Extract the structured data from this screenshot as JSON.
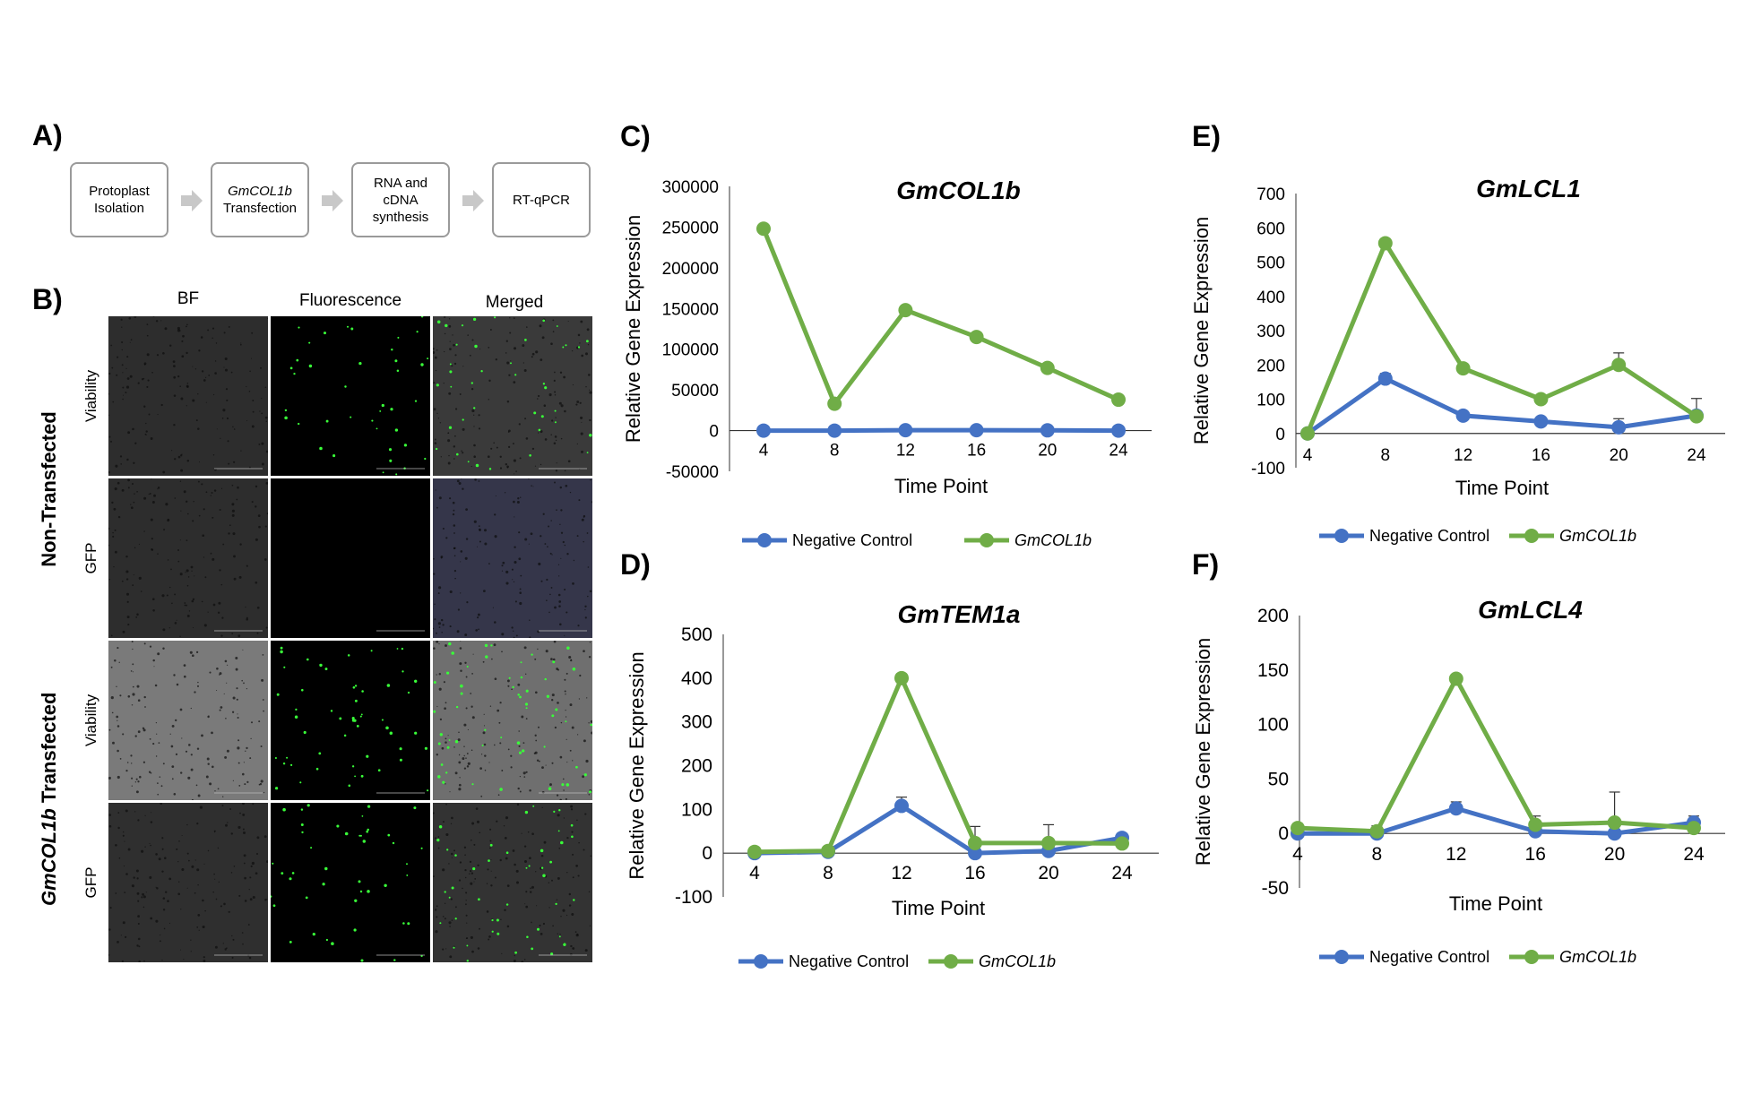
{
  "panel_labels": {
    "a": "A)",
    "b": "B)",
    "c": "C)",
    "d": "D)",
    "e": "E)",
    "f": "F)"
  },
  "workflow": {
    "steps": [
      {
        "line1": "Protoplast",
        "line2": "Isolation",
        "line3": "",
        "italic1": false
      },
      {
        "line1": "GmCOL1b",
        "line2": "Transfection",
        "line3": "",
        "italic1": true
      },
      {
        "line1": "RNA and",
        "line2": "cDNA",
        "line3": "synthesis",
        "italic1": false
      },
      {
        "line1": "RT-qPCR",
        "line2": "",
        "line3": "",
        "italic1": false
      }
    ]
  },
  "microscopy": {
    "columns": [
      "BF",
      "Fluorescence",
      "Merged"
    ],
    "groups": [
      {
        "label": "Non-Transfected",
        "italic_prefix": "",
        "rows": [
          "Viability",
          "GFP"
        ]
      },
      {
        "label": " Transfected",
        "italic_prefix": "GmCOL1b",
        "rows": [
          "Viability",
          "GFP"
        ]
      }
    ],
    "colors": {
      "bf_dark": "#2d2d2d",
      "bf_light": "#7a7a7a",
      "fluor_bg": "#000000",
      "gfp": "#39ff39",
      "merged_blue": "#35364a"
    }
  },
  "chart_data": [
    {
      "id": "C",
      "type": "line",
      "title": "GmCOL1b",
      "xlabel": "Time Point",
      "ylabel": "Relative Gene Expression",
      "x": [
        4,
        8,
        12,
        16,
        20,
        24
      ],
      "ylim": [
        -50000,
        300000
      ],
      "yticks": [
        -50000,
        0,
        50000,
        100000,
        150000,
        200000,
        250000,
        300000
      ],
      "grid": false,
      "legend": "bottom",
      "series": [
        {
          "name": "Negative Control",
          "color": "#4472c4",
          "values": [
            0,
            0,
            500,
            500,
            300,
            0
          ],
          "errors": [
            0,
            0,
            0,
            0,
            0,
            0
          ]
        },
        {
          "name": "GmCOL1b",
          "color": "#70ad47",
          "values": [
            248000,
            33000,
            148000,
            115000,
            77000,
            38000
          ],
          "errors": [
            0,
            0,
            0,
            0,
            0,
            0
          ]
        }
      ]
    },
    {
      "id": "E",
      "type": "line",
      "title": "GmLCL1",
      "xlabel": "Time Point",
      "ylabel": "Relative Gene Expression",
      "x": [
        4,
        8,
        12,
        16,
        20,
        24
      ],
      "ylim": [
        -100,
        700
      ],
      "yticks": [
        -100,
        0,
        100,
        200,
        300,
        400,
        500,
        600,
        700
      ],
      "grid": false,
      "legend": "bottom",
      "series": [
        {
          "name": "Negative Control",
          "color": "#4472c4",
          "values": [
            0,
            160,
            52,
            35,
            18,
            52
          ],
          "errors": [
            0,
            15,
            0,
            0,
            25,
            50
          ]
        },
        {
          "name": "GmCOL1b",
          "color": "#70ad47",
          "values": [
            0,
            555,
            190,
            100,
            200,
            50
          ],
          "errors": [
            0,
            0,
            0,
            0,
            35,
            0
          ]
        }
      ]
    },
    {
      "id": "D",
      "type": "line",
      "title": "GmTEM1a",
      "xlabel": "Time Point",
      "ylabel": "Relative Gene Expression",
      "x": [
        4,
        8,
        12,
        16,
        20,
        24
      ],
      "ylim": [
        -100,
        500
      ],
      "yticks": [
        -100,
        0,
        100,
        200,
        300,
        400,
        500
      ],
      "grid": false,
      "legend": "bottom",
      "series": [
        {
          "name": "Negative Control",
          "color": "#4472c4",
          "values": [
            0,
            3,
            108,
            0,
            5,
            35
          ],
          "errors": [
            0,
            0,
            20,
            0,
            0,
            10
          ]
        },
        {
          "name": "GmCOL1b",
          "color": "#70ad47",
          "values": [
            3,
            5,
            400,
            23,
            23,
            22
          ],
          "errors": [
            0,
            0,
            0,
            38,
            42,
            0
          ]
        }
      ]
    },
    {
      "id": "F",
      "type": "line",
      "title": "GmLCL4",
      "xlabel": "Time Point",
      "ylabel": "Relative Gene Expression",
      "x": [
        4,
        8,
        12,
        16,
        20,
        24
      ],
      "ylim": [
        -50,
        200
      ],
      "yticks": [
        -50,
        0,
        50,
        100,
        150,
        200
      ],
      "grid": false,
      "legend": "bottom",
      "series": [
        {
          "name": "Negative Control",
          "color": "#4472c4",
          "values": [
            0,
            0,
            23,
            2,
            0,
            10
          ],
          "errors": [
            0,
            0,
            6,
            0,
            0,
            6
          ]
        },
        {
          "name": "GmCOL1b",
          "color": "#70ad47",
          "values": [
            5,
            2,
            142,
            8,
            10,
            5
          ],
          "errors": [
            4,
            5,
            0,
            8,
            28,
            0
          ]
        }
      ]
    }
  ]
}
